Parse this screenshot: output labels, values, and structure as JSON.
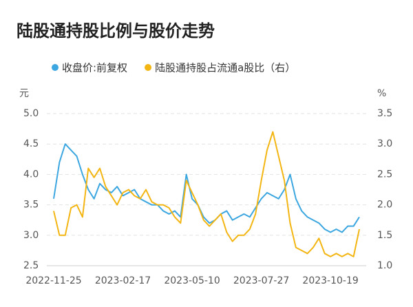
{
  "chart_data": {
    "type": "line",
    "title": "陆股通持股比例与股价走势",
    "y_unit": "元",
    "y2_unit": "%",
    "categories": [
      "2022-11-25",
      null,
      null,
      null,
      null,
      null,
      null,
      null,
      null,
      null,
      null,
      null,
      "2023-02-17",
      null,
      null,
      null,
      null,
      null,
      null,
      null,
      null,
      null,
      null,
      null,
      "2023-05-10",
      null,
      null,
      null,
      null,
      null,
      null,
      null,
      null,
      null,
      null,
      null,
      "2023-07-27",
      null,
      null,
      null,
      null,
      null,
      null,
      null,
      null,
      null,
      null,
      null,
      "2023-10-19",
      null,
      null,
      null,
      null,
      null
    ],
    "series": [
      {
        "name": "收盘价:前复权",
        "color": "#3ba6e0",
        "values": [
          3.6,
          4.2,
          4.5,
          4.4,
          4.3,
          4.0,
          3.75,
          3.6,
          3.85,
          3.75,
          3.7,
          3.8,
          3.65,
          3.7,
          3.75,
          3.6,
          3.55,
          3.5,
          3.5,
          3.4,
          3.35,
          3.4,
          3.3,
          4.0,
          3.6,
          3.5,
          3.3,
          3.2,
          3.25,
          3.35,
          3.4,
          3.25,
          3.3,
          3.35,
          3.3,
          3.45,
          3.6,
          3.7,
          3.65,
          3.6,
          3.75,
          4.0,
          3.6,
          3.4,
          3.3,
          3.25,
          3.2,
          3.1,
          3.05,
          3.1,
          3.05,
          3.15,
          3.15,
          3.3
        ]
      },
      {
        "name": "陆股通持股占流通a股比（右）",
        "color": "#f3b512",
        "axis": "y2",
        "values": [
          1.9,
          1.5,
          1.5,
          1.95,
          2.0,
          1.8,
          2.6,
          2.45,
          2.6,
          2.3,
          2.15,
          2.0,
          2.2,
          2.25,
          2.15,
          2.1,
          2.25,
          2.05,
          2.0,
          2.0,
          1.95,
          1.8,
          1.7,
          2.4,
          2.2,
          2.0,
          1.75,
          1.65,
          1.75,
          1.85,
          1.55,
          1.4,
          1.5,
          1.5,
          1.6,
          1.85,
          2.4,
          2.9,
          3.2,
          2.8,
          2.4,
          1.7,
          1.3,
          1.25,
          1.2,
          1.3,
          1.45,
          1.2,
          1.15,
          1.2,
          1.15,
          1.2,
          1.15,
          1.6
        ]
      }
    ],
    "ylim": [
      2.5,
      5.0
    ],
    "yticks": [
      2.5,
      {
        "value": 3,
        "label": "3.0"
      },
      3.5,
      {
        "value": 4,
        "label": "4.0"
      },
      4.5,
      {
        "value": 5,
        "label": "5.0"
      }
    ],
    "y2lim": [
      1.0,
      3.5
    ],
    "y2ticks": [
      {
        "value": 1,
        "label": "1.0"
      },
      1.5,
      {
        "value": 2,
        "label": "2.0"
      },
      2.5,
      {
        "value": 3,
        "label": "3.0"
      },
      3.5
    ],
    "grid": true
  }
}
